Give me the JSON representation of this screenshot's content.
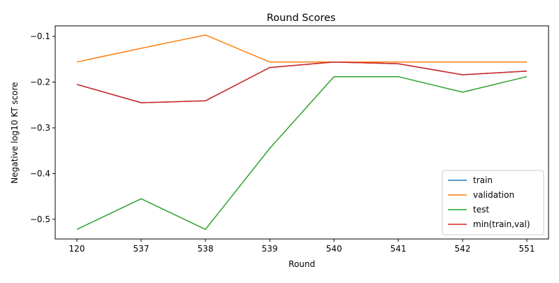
{
  "chart_data": {
    "type": "line",
    "title": "Round Scores",
    "xlabel": "Round",
    "ylabel": "Negative log10 KT score",
    "categories": [
      "120",
      "537",
      "538",
      "539",
      "540",
      "541",
      "542",
      "551"
    ],
    "ylim": [
      -0.543,
      -0.077
    ],
    "yticks": [
      -0.5,
      -0.4,
      -0.3,
      -0.2,
      -0.1
    ],
    "ytick_labels": [
      "−0.5",
      "−0.4",
      "−0.3",
      "−0.2",
      "−0.1"
    ],
    "grid": false,
    "legend_position": "lower-right",
    "series": [
      {
        "name": "train",
        "color": "#1f77b4",
        "values": [
          -0.205,
          -0.245,
          -0.241,
          -0.168,
          -0.156,
          -0.16,
          -0.184,
          -0.176
        ]
      },
      {
        "name": "validation",
        "color": "#ff7f0e",
        "values": [
          -0.156,
          -0.126,
          -0.097,
          -0.156,
          -0.156,
          -0.156,
          -0.156,
          -0.156
        ]
      },
      {
        "name": "test",
        "color": "#2ca02c",
        "values": [
          -0.522,
          -0.455,
          -0.522,
          -0.345,
          -0.188,
          -0.188,
          -0.222,
          -0.188
        ]
      },
      {
        "name": "min(train,val)",
        "color": "#d62728",
        "values": [
          -0.205,
          -0.245,
          -0.241,
          -0.168,
          -0.156,
          -0.16,
          -0.184,
          -0.176
        ]
      }
    ]
  }
}
